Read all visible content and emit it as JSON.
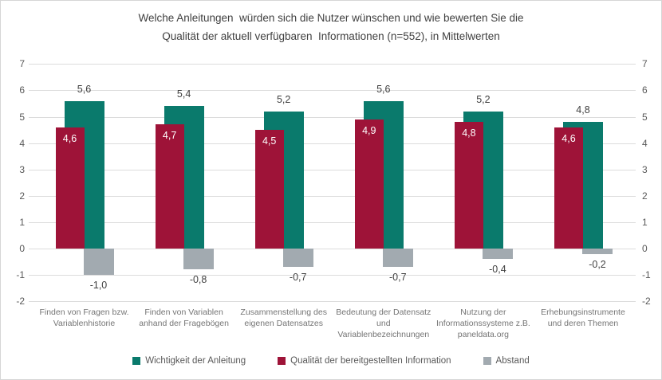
{
  "title_line1": "Welche Anleitungen  würden sich die Nutzer wünschen und wie bewerten Sie die",
  "title_line2": "Qualität der aktuell verfügbaren  Informationen (n=552), in Mittelwerten",
  "chart_data": {
    "type": "bar",
    "title": "Welche Anleitungen würden sich die Nutzer wünschen und wie bewerten Sie die Qualität der aktuell verfügbaren Informationen (n=552), in Mittelwerten",
    "categories": [
      [
        "Finden von Fragen bzw.",
        "Variablenhistorie"
      ],
      [
        "Finden von Variablen",
        "anhand der Fragebögen"
      ],
      [
        "Zusammenstellung des",
        "eigenen Datensatzes"
      ],
      [
        "Bedeutung der Datensatz",
        "und",
        "Variablenbezeichnungen"
      ],
      [
        "Nutzung der",
        "Informationssysteme z.B.",
        "paneldata.org"
      ],
      [
        "Erhebungsinstrumente",
        "und deren Themen"
      ]
    ],
    "series": [
      {
        "name": "Wichtigkeit der Anleitung",
        "key": "wichtigkeit",
        "color": "#0a7a6c",
        "values": [
          5.6,
          5.4,
          5.2,
          5.6,
          5.2,
          4.8
        ],
        "labels": [
          "5,6",
          "5,4",
          "5,2",
          "5,6",
          "5,2",
          "4,8"
        ]
      },
      {
        "name": "Qualität der bereitgestellten Information",
        "key": "qualitaet",
        "color": "#9e1338",
        "values": [
          4.6,
          4.7,
          4.5,
          4.9,
          4.8,
          4.6
        ],
        "labels": [
          "4,6",
          "4,7",
          "4,5",
          "4,9",
          "4,8",
          "4,6"
        ]
      },
      {
        "name": "Abstand",
        "key": "abstand",
        "color": "#a2aab0",
        "values": [
          -1.0,
          -0.8,
          -0.7,
          -0.7,
          -0.4,
          -0.2
        ],
        "labels": [
          "-1,0",
          "-0,8",
          "-0,7",
          "-0,7",
          "-0,4",
          "-0,2"
        ]
      }
    ],
    "y_ticks": [
      7,
      6,
      5,
      4,
      3,
      2,
      1,
      0,
      -1,
      -2
    ],
    "ylim": [
      -2,
      7
    ],
    "grid": true,
    "legend_position": "bottom",
    "axis_sides": [
      "left",
      "right"
    ]
  },
  "colors": {
    "teal": "#0a7a6c",
    "maroon": "#9e1338",
    "gray": "#a2aab0",
    "gridline": "#dcdcdc",
    "axis_text": "#595959",
    "category_text": "#757575",
    "title_text": "#404040",
    "value_text": "#404040",
    "value_text_inside": "#ffffff",
    "background": "#ffffff",
    "border": "#d6d6d6"
  }
}
